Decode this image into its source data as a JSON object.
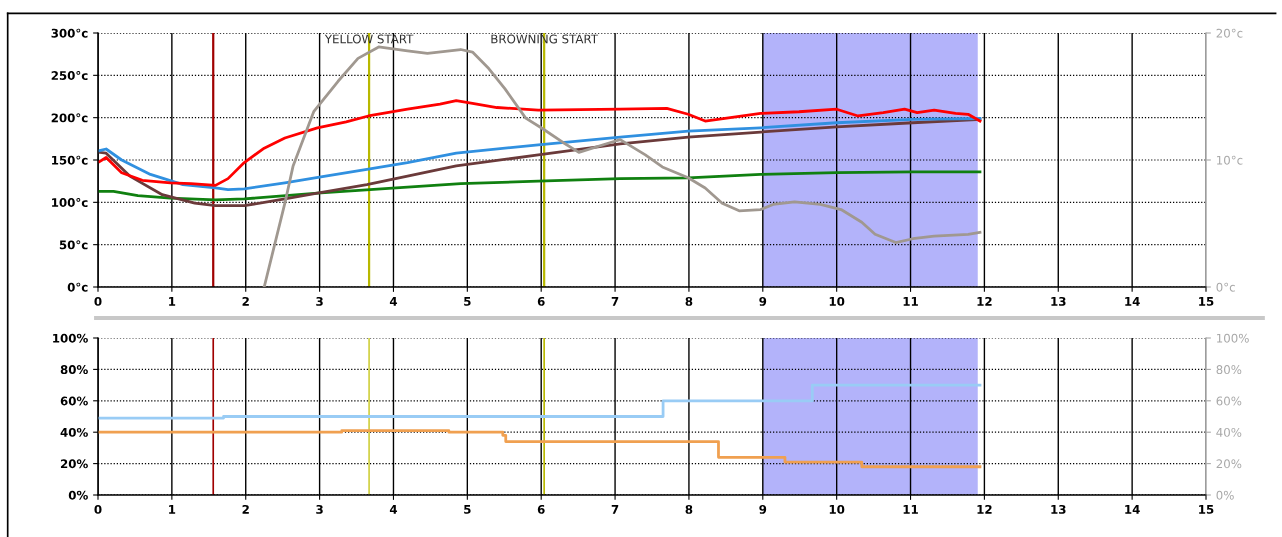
{
  "chart_data": [
    {
      "type": "line",
      "xlim": [
        0,
        15
      ],
      "xticks": [
        0,
        1,
        2,
        3,
        4,
        5,
        6,
        7,
        8,
        9,
        10,
        11,
        12,
        13,
        14,
        15
      ],
      "ylim": [
        0,
        300
      ],
      "yticks": [
        {
          "value": 0,
          "label": "0°c"
        },
        {
          "value": 50,
          "label": "50°c"
        },
        {
          "value": 100,
          "label": "100°c"
        },
        {
          "value": 150,
          "label": "150°c"
        },
        {
          "value": 200,
          "label": "200°c"
        },
        {
          "value": 250,
          "label": "250°c"
        },
        {
          "value": 300,
          "label": "300°c"
        }
      ],
      "y2lim": [
        0,
        20
      ],
      "y2ticks": [
        {
          "value": 0,
          "label": "0°c"
        },
        {
          "value": 10,
          "label": "10°c"
        },
        {
          "value": 20,
          "label": "20°c"
        }
      ],
      "grid": true,
      "marker": "none",
      "line_style": "solid",
      "series": [
        {
          "color": "#a09890",
          "axis": "y2",
          "x": [
            2.25,
            2.53,
            2.64,
            2.92,
            3.25,
            3.52,
            3.8,
            4.19,
            4.46,
            4.91,
            5.07,
            5.29,
            5.51,
            5.79,
            6.01,
            6.29,
            6.51,
            6.95,
            7.07,
            7.41,
            7.64,
            7.99,
            8.22,
            8.45,
            8.68,
            8.97,
            9.14,
            9.43,
            9.78,
            10.06,
            10.34,
            10.52,
            10.8,
            11.03,
            11.32,
            11.78,
            11.94
          ],
          "values": [
            0,
            6.6,
            9.5,
            13.8,
            16.2,
            18.0,
            18.9,
            18.6,
            18.4,
            18.7,
            18.5,
            17.2,
            15.6,
            13.3,
            12.5,
            11.4,
            10.6,
            11.4,
            11.6,
            10.4,
            9.45,
            8.6,
            7.8,
            6.6,
            6.0,
            6.1,
            6.5,
            6.7,
            6.5,
            6.1,
            5.1,
            4.15,
            3.5,
            3.8,
            4.0,
            4.15,
            4.3
          ]
        },
        {
          "color": "#108010",
          "x": [
            0.02,
            0.21,
            0.54,
            0.98,
            1.59,
            1.98,
            2.97,
            4.19,
            4.91,
            5.96,
            7.07,
            7.99,
            8.97,
            10.0,
            11.03,
            11.94
          ],
          "values": [
            113,
            113,
            108,
            105,
            103,
            104,
            111,
            118,
            122,
            125,
            128,
            129,
            133,
            135,
            136,
            136
          ]
        },
        {
          "color": "#6b3a3a",
          "x": [
            0.02,
            0.11,
            0.43,
            0.87,
            1.31,
            1.59,
            1.98,
            2.53,
            2.97,
            3.64,
            4.19,
            4.85,
            5.96,
            7.07,
            7.99,
            8.97,
            10.0,
            11.03,
            11.94
          ],
          "values": [
            159,
            158,
            131,
            109,
            99,
            96,
            96,
            104,
            111,
            121,
            131,
            143,
            156,
            169,
            177,
            183,
            189,
            194,
            198
          ]
        },
        {
          "color": "#3090e0",
          "x": [
            0.02,
            0.11,
            0.32,
            0.71,
            1.15,
            1.59,
            1.76,
            1.98,
            2.53,
            3.08,
            3.64,
            4.19,
            4.85,
            5.96,
            7.07,
            7.99,
            8.97,
            10.0,
            11.03,
            11.94
          ],
          "values": [
            161,
            163,
            150,
            133,
            121,
            117,
            115,
            116,
            123,
            131,
            139,
            147,
            158,
            168,
            177,
            184,
            188,
            194,
            198,
            199
          ]
        },
        {
          "color": "#ff0000",
          "x": [
            0.02,
            0.11,
            0.32,
            0.6,
            0.98,
            1.26,
            1.59,
            1.76,
            1.98,
            2.25,
            2.53,
            2.97,
            3.36,
            3.66,
            4.19,
            4.63,
            4.85,
            5.07,
            5.4,
            5.96,
            7.07,
            7.7,
            7.99,
            8.22,
            8.56,
            8.97,
            9.49,
            10.0,
            10.29,
            10.63,
            10.92,
            11.09,
            11.32,
            11.61,
            11.78,
            11.94
          ],
          "values": [
            148,
            153,
            135,
            126,
            123,
            122,
            120,
            128,
            147,
            164,
            176,
            188,
            195,
            202,
            210,
            216,
            220,
            217,
            212,
            209,
            210,
            211,
            204,
            196,
            200,
            205,
            207,
            210,
            202,
            206,
            210,
            206,
            209,
            205,
            204,
            196
          ]
        }
      ],
      "ref_lines": [
        {
          "axis": "x",
          "value": 1.56,
          "color": "#a00000"
        },
        {
          "axis": "x",
          "value": 3.67,
          "label": "YELLOW START",
          "color": "#b8b800"
        },
        {
          "axis": "x",
          "value": 6.04,
          "label": "BROWNING START",
          "color": "#b8b800"
        }
      ],
      "bands": [
        {
          "axis": "x",
          "from": 9,
          "to": 11.91,
          "color": "#b3b3fa"
        }
      ]
    },
    {
      "type": "step",
      "xlim": [
        0,
        15
      ],
      "xticks": [
        0,
        1,
        2,
        3,
        4,
        5,
        6,
        7,
        8,
        9,
        10,
        11,
        12,
        13,
        14,
        15
      ],
      "ylim": [
        0,
        100
      ],
      "yticks": [
        {
          "value": 0,
          "label": "0%"
        },
        {
          "value": 20,
          "label": "20%"
        },
        {
          "value": 40,
          "label": "40%"
        },
        {
          "value": 60,
          "label": "60%"
        },
        {
          "value": 80,
          "label": "80%"
        },
        {
          "value": 100,
          "label": "100%"
        }
      ],
      "y2lim": [
        0,
        100
      ],
      "y2ticks": [
        {
          "value": 0,
          "label": "0%"
        },
        {
          "value": 20,
          "label": "20%"
        },
        {
          "value": 40,
          "label": "40%"
        },
        {
          "value": 60,
          "label": "60%"
        },
        {
          "value": 80,
          "label": "80%"
        },
        {
          "value": 100,
          "label": "100%"
        }
      ],
      "grid": true,
      "marker": "none",
      "line_style": "solid",
      "series": [
        {
          "color": "#99ccf5",
          "x": [
            0,
            1.7,
            7.65,
            9.67,
            11.94
          ],
          "values": [
            49,
            50,
            60,
            70,
            70
          ]
        },
        {
          "color": "#f0a050",
          "x": [
            0,
            3.3,
            4.75,
            5.48,
            5.52,
            8.4,
            9.3,
            10.34,
            11.94
          ],
          "values": [
            40,
            41,
            40,
            38,
            34,
            24,
            21,
            18,
            18
          ]
        }
      ],
      "ref_lines": [
        {
          "axis": "x",
          "value": 1.56,
          "color": "#a00000"
        },
        {
          "axis": "x",
          "value": 3.67,
          "color": "#d0d040"
        },
        {
          "axis": "x",
          "value": 6.04,
          "color": "#b8b800"
        }
      ],
      "bands": [
        {
          "axis": "x",
          "from": 9,
          "to": 11.91,
          "color": "#b3b3fa"
        }
      ]
    }
  ]
}
